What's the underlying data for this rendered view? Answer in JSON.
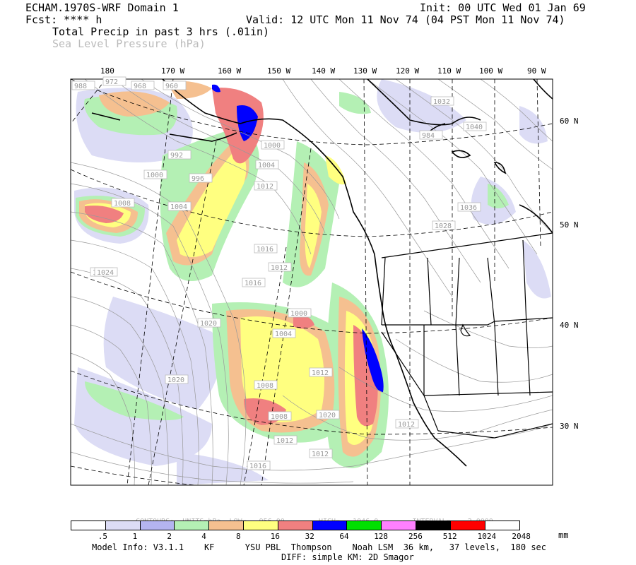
{
  "header": {
    "model": "ECHAM.1970S-WRF Domain 1",
    "fcst": "Fcst: **** h",
    "init": "Init: 00 UTC Wed 01 Jan 69",
    "valid": "Valid: 12 UTC Mon 11 Nov 74 (04 PST Mon 11 Nov 74)",
    "field1": "Total Precip in past 3 hrs (.01in)",
    "field2": "Sea Level Pressure (hPa)"
  },
  "lon_labels": [
    "180",
    "170 W",
    "160 W",
    "150 W",
    "140 W",
    "130 W",
    "120 W",
    "110 W",
    "100 W",
    "90 W"
  ],
  "lat_labels": [
    "60 N",
    "50 N",
    "40 N",
    "30 N"
  ],
  "pressure_labels": [
    "988",
    "972",
    "968",
    "960",
    "1000",
    "992",
    "996",
    "1000",
    "1004",
    "1008",
    "1004",
    "1012",
    "1016",
    "1012",
    "1016",
    "1024",
    "1020",
    "1020",
    "1000",
    "1004",
    "1008",
    "1008",
    "1012",
    "1016",
    "1020",
    "1012",
    "1024",
    "1032",
    "1040",
    "1036",
    "1028",
    "1012",
    "1012",
    "1016",
    "984"
  ],
  "contour_info": {
    "contours": "CONTOURS:",
    "units": "UNITS=hPa",
    "low": "LOW=   956.00",
    "high": "HIGH=   1046.0",
    "interval": "INTERVAL=    2.0000"
  },
  "colorbar": {
    "unit": "mm",
    "colors": [
      "#ffffff",
      "#dcdcf5",
      "#b4b4f0",
      "#b4f0b4",
      "#f5c090",
      "#ffff80",
      "#f08080",
      "#0000ff",
      "#00e000",
      "#ff80ff",
      "#000000",
      "#ff0000",
      "#ffffff"
    ],
    "labels": [
      ".5",
      "1",
      "2",
      "4",
      "8",
      "16",
      "32",
      "64",
      "128",
      "256",
      "512",
      "1024",
      "2048"
    ]
  },
  "footer": {
    "line1": "Model Info: V3.1.1    KF      YSU PBL  Thompson    Noah LSM  36 km,   37 levels,  180 sec",
    "line2": "DIFF: simple KM: 2D Smagor"
  },
  "colors": {
    "precip_light": "#dcdcf5",
    "precip_blue": "#b4b4f0",
    "precip_green": "#b4f0b4",
    "precip_orange": "#f5c090",
    "precip_yellow": "#ffff80",
    "precip_red": "#f08080",
    "precip_darkblue": "#0000ff"
  }
}
